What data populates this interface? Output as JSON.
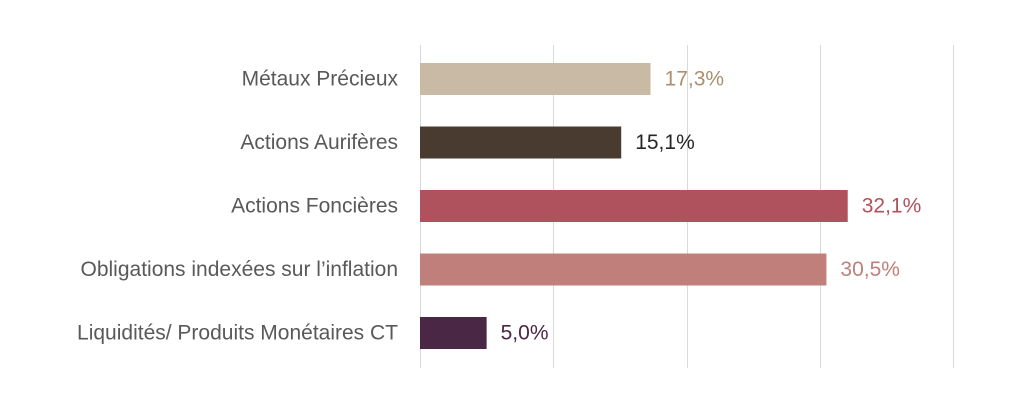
{
  "chart_data": {
    "type": "bar",
    "orientation": "horizontal",
    "categories": [
      "Métaux Précieux",
      "Actions Aurifères",
      "Actions Foncières",
      "Obligations indexées sur l’inflation",
      "Liquidités/ Produits Monétaires CT"
    ],
    "values": [
      17.3,
      15.1,
      32.1,
      30.5,
      5.0
    ],
    "value_labels": [
      "17,3%",
      "15,1%",
      "32,1%",
      "30,5%",
      "5,0%"
    ],
    "bar_colors": [
      "#c8baa4",
      "#4a3b31",
      "#b0525d",
      "#c07f7b",
      "#4a2744"
    ],
    "label_colors": [
      "#a89070",
      "#262626",
      "#b0525d",
      "#c07f7b",
      "#4a2744"
    ],
    "xlim": [
      0,
      40
    ],
    "grid_step": 10,
    "grid": true,
    "title": "",
    "xlabel": "",
    "ylabel": ""
  }
}
